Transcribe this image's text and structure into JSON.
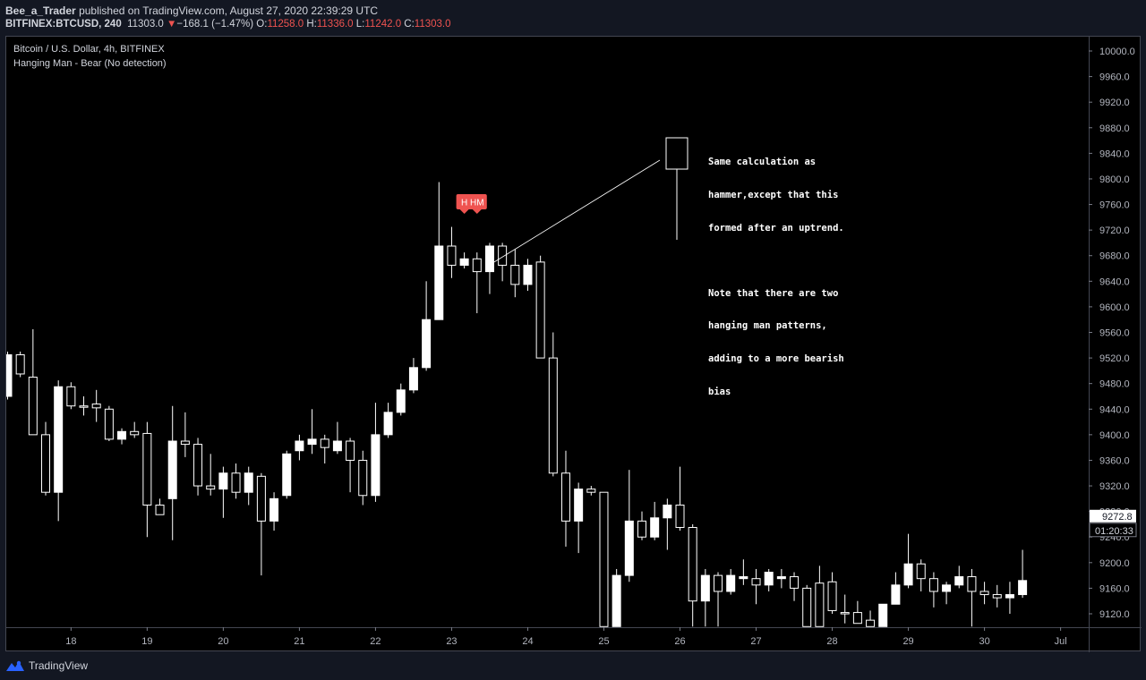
{
  "header": {
    "author": "Bee_a_Trader",
    "published_text": "published on TradingView.com, August 27, 2020 22:39:29 UTC",
    "symbol": "BITFINEX:BTCUSD, 240",
    "last": "11303.0",
    "change": "−168.1 (−1.47%)",
    "o_label": "O:",
    "o_value": "11258.0",
    "h_label": "H:",
    "h_value": "11336.0",
    "l_label": "L:",
    "l_value": "11242.0",
    "c_label": "C:",
    "c_value": "11303.0",
    "down_color": "#ef5350"
  },
  "legend": {
    "title": "Bitcoin / U.S. Dollar, 4h, BITFINEX",
    "indicator": "Hanging Man - Bear (No detection)"
  },
  "annotation": {
    "lines": [
      "Same calculation as",
      "hammer,except that this",
      "formed after an uptrend.",
      "",
      "Note that there are two",
      "hanging man patterns,",
      "adding to a more bearish",
      "bias"
    ]
  },
  "footer": {
    "brand": "TradingView"
  },
  "chart_data": {
    "type": "candlestick",
    "y_axis": {
      "min": 9100,
      "max": 10020,
      "ticks": [
        9120,
        9160,
        9200,
        9240,
        9280,
        9320,
        9360,
        9400,
        9440,
        9480,
        9520,
        9560,
        9600,
        9640,
        9680,
        9720,
        9760,
        9800,
        9840,
        9880,
        9920,
        9960,
        10000
      ],
      "tick_labels": [
        "9120.0",
        "9160.0",
        "9200.0",
        "9240.0",
        "9280.0",
        "9320.0",
        "9360.0",
        "9400.0",
        "9440.0",
        "9480.0",
        "9520.0",
        "9560.0",
        "9600.0",
        "9640.0",
        "9680.0",
        "9720.0",
        "9760.0",
        "9800.0",
        "9840.0",
        "9880.0",
        "9920.0",
        "9960.0",
        "10000.0"
      ]
    },
    "x_axis": {
      "labels": [
        "18",
        "19",
        "20",
        "21",
        "22",
        "23",
        "24",
        "25",
        "26",
        "27",
        "28",
        "29",
        "30",
        "Jul"
      ],
      "label_candle_index": [
        5,
        11,
        17,
        23,
        29,
        35,
        41,
        47,
        53,
        59,
        65,
        71,
        77,
        83
      ]
    },
    "price_label": {
      "value": "9272.8",
      "countdown": "01:20:33"
    },
    "markers": [
      {
        "text": "H",
        "candle_index": 36,
        "color": "#ef5350"
      },
      {
        "text": "HM",
        "candle_index": 37,
        "color": "#ef5350"
      }
    ],
    "candles": [
      {
        "o": 9460,
        "h": 9530,
        "l": 9455,
        "c": 9525
      },
      {
        "o": 9525,
        "h": 9530,
        "l": 9490,
        "c": 9495
      },
      {
        "o": 9490,
        "h": 9565,
        "l": 9400,
        "c": 9400
      },
      {
        "o": 9400,
        "h": 9420,
        "l": 9305,
        "c": 9310
      },
      {
        "o": 9310,
        "h": 9485,
        "l": 9265,
        "c": 9475
      },
      {
        "o": 9475,
        "h": 9482,
        "l": 9440,
        "c": 9445
      },
      {
        "o": 9445,
        "h": 9460,
        "l": 9430,
        "c": 9443
      },
      {
        "o": 9448,
        "h": 9470,
        "l": 9420,
        "c": 9442
      },
      {
        "o": 9440,
        "h": 9445,
        "l": 9390,
        "c": 9393
      },
      {
        "o": 9393,
        "h": 9410,
        "l": 9385,
        "c": 9405
      },
      {
        "o": 9405,
        "h": 9420,
        "l": 9395,
        "c": 9400
      },
      {
        "o": 9402,
        "h": 9420,
        "l": 9240,
        "c": 9290
      },
      {
        "o": 9290,
        "h": 9300,
        "l": 9275,
        "c": 9275
      },
      {
        "o": 9300,
        "h": 9445,
        "l": 9235,
        "c": 9390
      },
      {
        "o": 9390,
        "h": 9435,
        "l": 9365,
        "c": 9385
      },
      {
        "o": 9385,
        "h": 9395,
        "l": 9305,
        "c": 9320
      },
      {
        "o": 9320,
        "h": 9370,
        "l": 9305,
        "c": 9315
      },
      {
        "o": 9315,
        "h": 9350,
        "l": 9270,
        "c": 9340
      },
      {
        "o": 9340,
        "h": 9355,
        "l": 9300,
        "c": 9310
      },
      {
        "o": 9310,
        "h": 9350,
        "l": 9290,
        "c": 9340
      },
      {
        "o": 9335,
        "h": 9340,
        "l": 9180,
        "c": 9265
      },
      {
        "o": 9265,
        "h": 9310,
        "l": 9250,
        "c": 9300
      },
      {
        "o": 9305,
        "h": 9375,
        "l": 9300,
        "c": 9370
      },
      {
        "o": 9375,
        "h": 9400,
        "l": 9360,
        "c": 9390
      },
      {
        "o": 9385,
        "h": 9440,
        "l": 9370,
        "c": 9393
      },
      {
        "o": 9393,
        "h": 9400,
        "l": 9355,
        "c": 9380
      },
      {
        "o": 9375,
        "h": 9420,
        "l": 9370,
        "c": 9390
      },
      {
        "o": 9390,
        "h": 9395,
        "l": 9310,
        "c": 9360
      },
      {
        "o": 9360,
        "h": 9375,
        "l": 9290,
        "c": 9305
      },
      {
        "o": 9305,
        "h": 9450,
        "l": 9295,
        "c": 9400
      },
      {
        "o": 9400,
        "h": 9450,
        "l": 9395,
        "c": 9435
      },
      {
        "o": 9435,
        "h": 9480,
        "l": 9430,
        "c": 9470
      },
      {
        "o": 9470,
        "h": 9520,
        "l": 9465,
        "c": 9505
      },
      {
        "o": 9505,
        "h": 9640,
        "l": 9500,
        "c": 9580
      },
      {
        "o": 9580,
        "h": 9795,
        "l": 9580,
        "c": 9695
      },
      {
        "o": 9695,
        "h": 9725,
        "l": 9645,
        "c": 9665
      },
      {
        "o": 9665,
        "h": 9685,
        "l": 9660,
        "c": 9675
      },
      {
        "o": 9675,
        "h": 9685,
        "l": 9590,
        "c": 9655
      },
      {
        "o": 9655,
        "h": 9700,
        "l": 9620,
        "c": 9695
      },
      {
        "o": 9695,
        "h": 9700,
        "l": 9640,
        "c": 9665
      },
      {
        "o": 9665,
        "h": 9690,
        "l": 9615,
        "c": 9635
      },
      {
        "o": 9635,
        "h": 9675,
        "l": 9625,
        "c": 9665
      },
      {
        "o": 9670,
        "h": 9680,
        "l": 9520,
        "c": 9520
      },
      {
        "o": 9520,
        "h": 9560,
        "l": 9335,
        "c": 9340
      },
      {
        "o": 9340,
        "h": 9375,
        "l": 9225,
        "c": 9265
      },
      {
        "o": 9265,
        "h": 9325,
        "l": 9215,
        "c": 9315
      },
      {
        "o": 9315,
        "h": 9320,
        "l": 9305,
        "c": 9310
      },
      {
        "o": 9310,
        "h": 9310,
        "l": 9100,
        "c": 9100
      },
      {
        "o": 9100,
        "h": 9190,
        "l": 9100,
        "c": 9180
      },
      {
        "o": 9180,
        "h": 9345,
        "l": 9170,
        "c": 9265
      },
      {
        "o": 9265,
        "h": 9280,
        "l": 9235,
        "c": 9240
      },
      {
        "o": 9240,
        "h": 9295,
        "l": 9235,
        "c": 9270
      },
      {
        "o": 9270,
        "h": 9300,
        "l": 9220,
        "c": 9290
      },
      {
        "o": 9290,
        "h": 9350,
        "l": 9250,
        "c": 9255
      },
      {
        "o": 9255,
        "h": 9260,
        "l": 9100,
        "c": 9140
      },
      {
        "o": 9140,
        "h": 9190,
        "l": 9100,
        "c": 9180
      },
      {
        "o": 9180,
        "h": 9185,
        "l": 9100,
        "c": 9155
      },
      {
        "o": 9155,
        "h": 9190,
        "l": 9150,
        "c": 9180
      },
      {
        "o": 9175,
        "h": 9205,
        "l": 9165,
        "c": 9178
      },
      {
        "o": 9175,
        "h": 9190,
        "l": 9135,
        "c": 9165
      },
      {
        "o": 9165,
        "h": 9190,
        "l": 9155,
        "c": 9185
      },
      {
        "o": 9175,
        "h": 9190,
        "l": 9160,
        "c": 9178
      },
      {
        "o": 9178,
        "h": 9185,
        "l": 9140,
        "c": 9160
      },
      {
        "o": 9160,
        "h": 9165,
        "l": 9100,
        "c": 9100
      },
      {
        "o": 9168,
        "h": 9195,
        "l": 9100,
        "c": 9100
      },
      {
        "o": 9170,
        "h": 9185,
        "l": 9120,
        "c": 9125
      },
      {
        "o": 9122,
        "h": 9150,
        "l": 9105,
        "c": 9120
      },
      {
        "o": 9122,
        "h": 9140,
        "l": 9105,
        "c": 9105
      },
      {
        "o": 9110,
        "h": 9125,
        "l": 9100,
        "c": 9100
      },
      {
        "o": 9100,
        "h": 9135,
        "l": 9100,
        "c": 9135
      },
      {
        "o": 9135,
        "h": 9185,
        "l": 9135,
        "c": 9165
      },
      {
        "o": 9165,
        "h": 9245,
        "l": 9160,
        "c": 9198
      },
      {
        "o": 9198,
        "h": 9205,
        "l": 9155,
        "c": 9175
      },
      {
        "o": 9175,
        "h": 9185,
        "l": 9130,
        "c": 9155
      },
      {
        "o": 9155,
        "h": 9170,
        "l": 9135,
        "c": 9165
      },
      {
        "o": 9165,
        "h": 9195,
        "l": 9160,
        "c": 9178
      },
      {
        "o": 9178,
        "h": 9190,
        "l": 9100,
        "c": 9155
      },
      {
        "o": 9155,
        "h": 9170,
        "l": 9135,
        "c": 9150
      },
      {
        "o": 9150,
        "h": 9165,
        "l": 9130,
        "c": 9145
      },
      {
        "o": 9145,
        "h": 9170,
        "l": 9120,
        "c": 9150
      },
      {
        "o": 9150,
        "h": 9220,
        "l": 9145,
        "c": 9172
      }
    ]
  }
}
